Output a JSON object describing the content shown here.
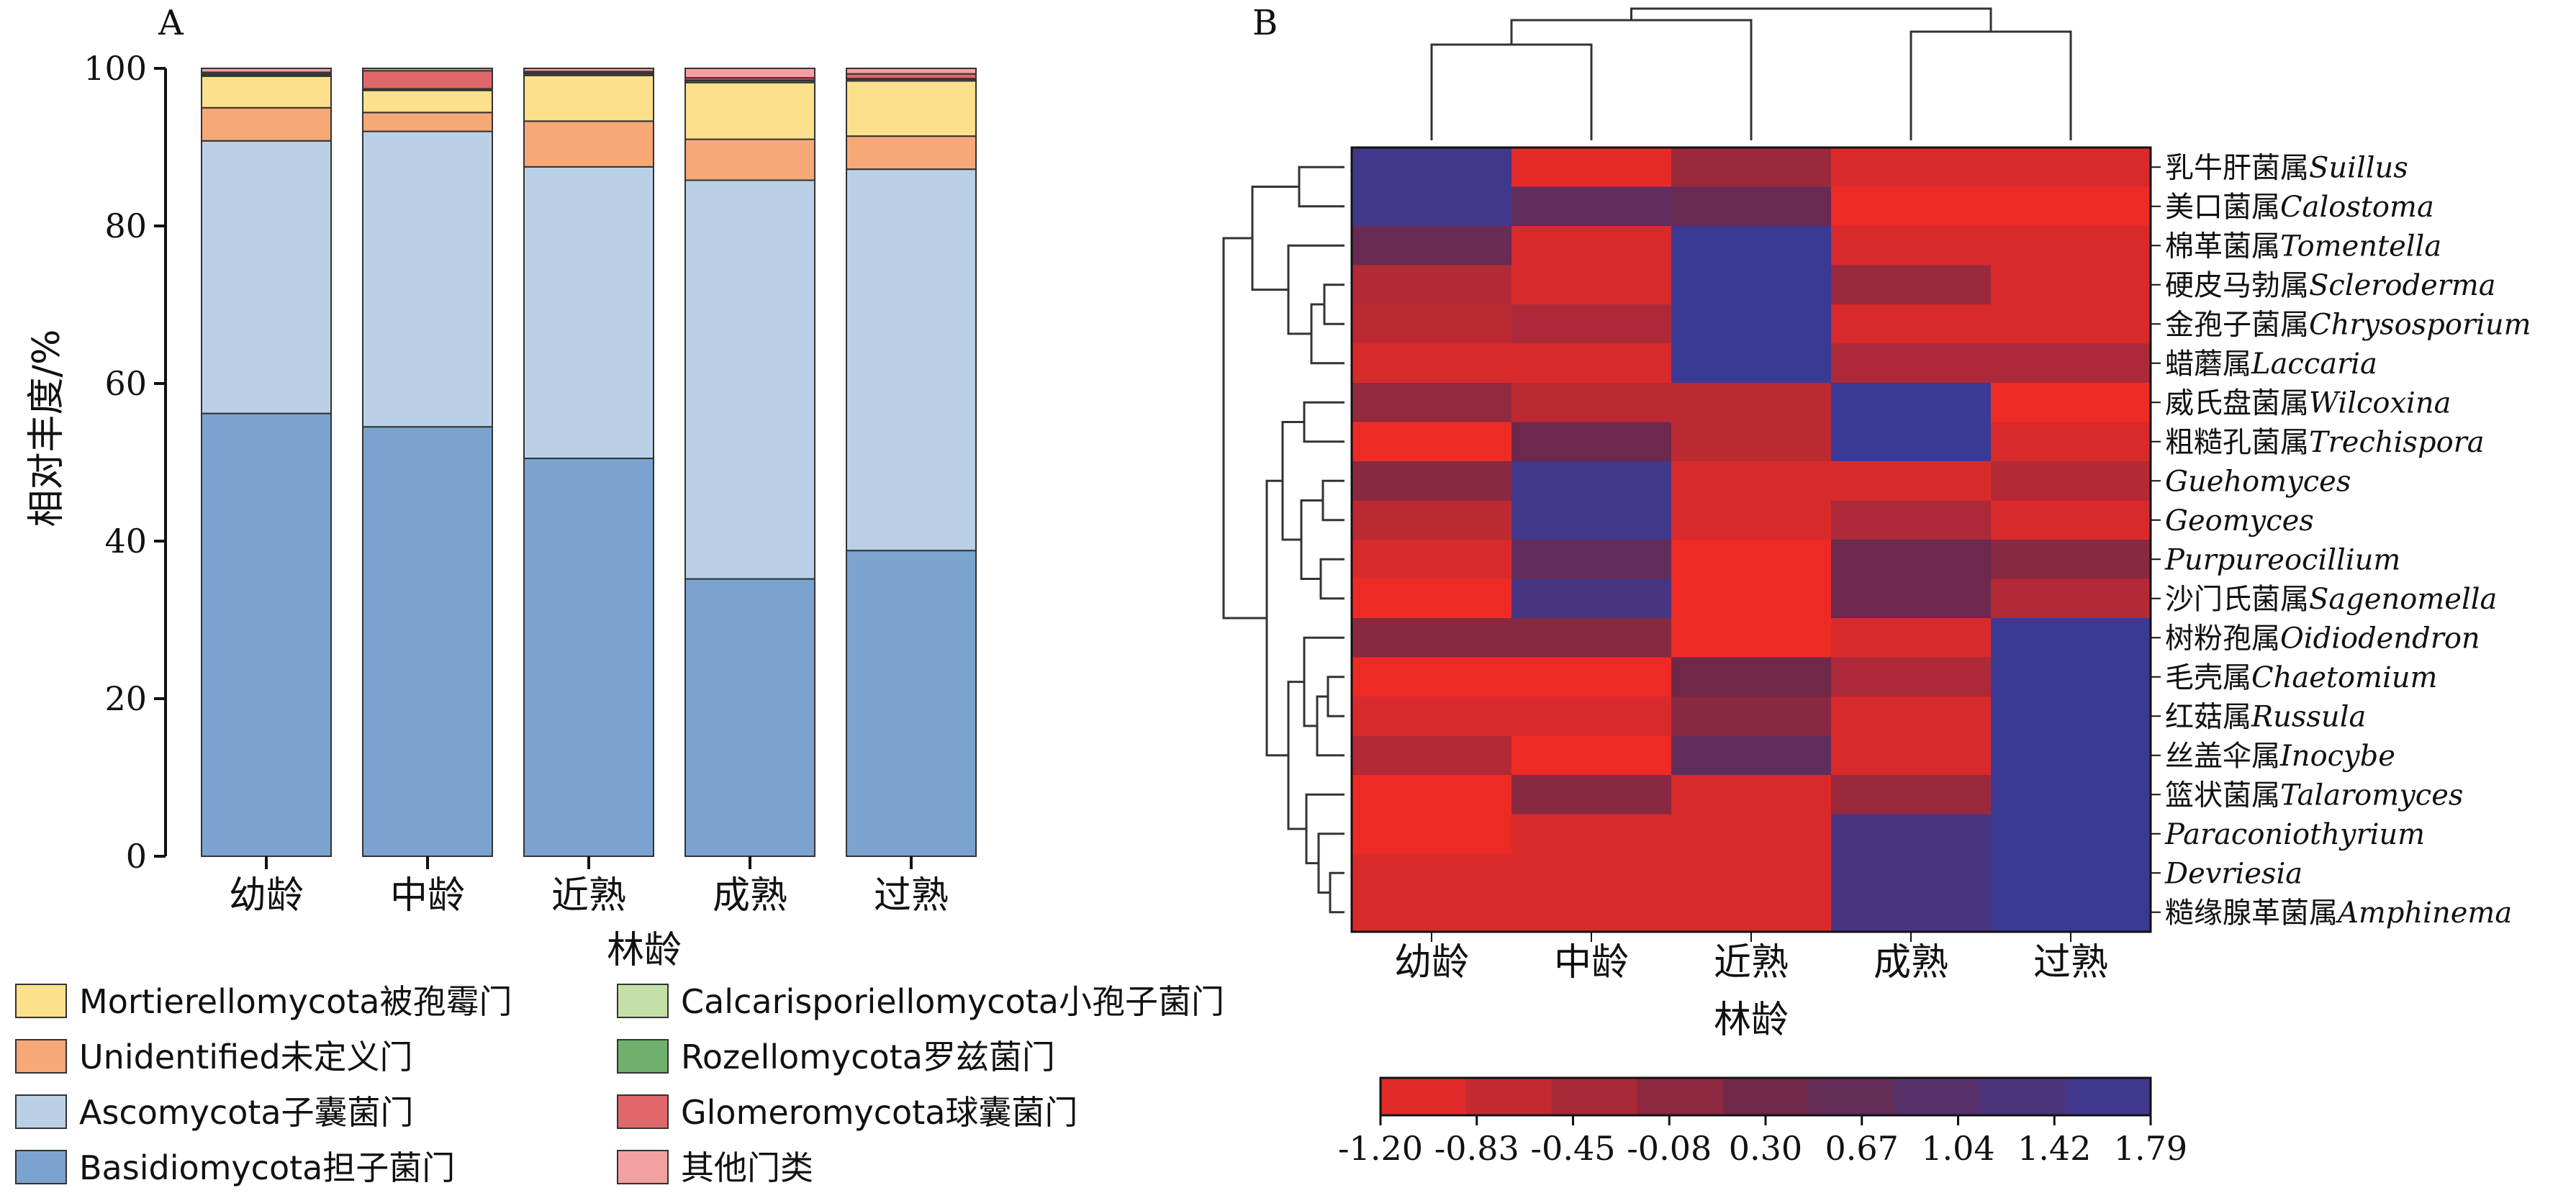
{
  "chart_data": [
    {
      "type": "bar",
      "stacked": true,
      "panel_label": "A",
      "categories": [
        "幼龄",
        "中龄",
        "近熟",
        "成熟",
        "过熟"
      ],
      "xlabel": "林龄",
      "ylabel": "相对丰度/%",
      "ylim": [
        0,
        100
      ],
      "yticks": [
        "0",
        "20",
        "40",
        "60",
        "80",
        "100"
      ],
      "series": [
        {
          "name": "Basidiomycota担子菌门",
          "color": "#7ba3cf",
          "values": [
            56.2,
            54.5,
            50.5,
            35.2,
            38.8
          ]
        },
        {
          "name": "Ascomycota子囊菌门",
          "color": "#b9d0e7",
          "values": [
            34.6,
            37.5,
            37.0,
            50.6,
            48.4
          ]
        },
        {
          "name": "Unidentified未定义门",
          "color": "#f6a877",
          "values": [
            4.2,
            2.4,
            5.8,
            5.2,
            4.2
          ]
        },
        {
          "name": "Mortierellomycota被孢霉门",
          "color": "#fde08c",
          "values": [
            4.0,
            2.8,
            5.8,
            7.2,
            7.0
          ]
        },
        {
          "name": "Calcarisporiellomycota小孢子菌门",
          "color": "#c4e0a6",
          "values": [
            0.2,
            0.1,
            0.2,
            0.2,
            0.2
          ]
        },
        {
          "name": "Rozellomycota罗兹菌门",
          "color": "#6fb16c",
          "values": [
            0.1,
            0.1,
            0.1,
            0.1,
            0.1
          ]
        },
        {
          "name": "Glomeromycota球囊菌门",
          "color": "#e0676a",
          "values": [
            0.2,
            2.3,
            0.2,
            0.3,
            0.6
          ]
        },
        {
          "name": "其他门类",
          "color": "#f3a0a0",
          "values": [
            0.5,
            0.3,
            0.4,
            1.2,
            0.7
          ]
        }
      ],
      "legend_order": [
        "Mortierellomycota被孢霉门",
        "Calcarisporiellomycota小孢子菌门",
        "Unidentified未定义门",
        "Rozellomycota罗兹菌门",
        "Ascomycota子囊菌门",
        "Glomeromycota球囊菌门",
        "Basidiomycota担子菌门",
        "其他门类"
      ],
      "legend_placement": "bottom"
    },
    {
      "type": "heatmap",
      "panel_label": "B",
      "columns": [
        "幼龄",
        "中龄",
        "近熟",
        "成熟",
        "过熟"
      ],
      "xlabel": "林龄",
      "rows": [
        {
          "prefix": "乳牛肝菌属",
          "latin": "Suillus",
          "values": [
            1.6,
            -1.1,
            -0.2,
            -0.95,
            -0.95
          ]
        },
        {
          "prefix": "美口菌属",
          "latin": "Calostoma",
          "values": [
            1.6,
            0.7,
            0.5,
            -1.2,
            -1.2
          ]
        },
        {
          "prefix": "棉革菌属",
          "latin": "Tomentella",
          "values": [
            0.5,
            -0.95,
            1.79,
            -0.95,
            -0.95
          ]
        },
        {
          "prefix": "硬皮马勃属",
          "latin": "Scleroderma",
          "values": [
            -0.5,
            -0.95,
            1.79,
            -0.2,
            -0.95
          ]
        },
        {
          "prefix": "金孢子菌属",
          "latin": "Chrysosporium",
          "values": [
            -0.6,
            -0.4,
            1.79,
            -0.95,
            -0.95
          ]
        },
        {
          "prefix": "蜡蘑属",
          "latin": "Laccaria",
          "values": [
            -0.95,
            -0.95,
            1.79,
            -0.4,
            -0.4
          ]
        },
        {
          "prefix": "威氏盘菌属",
          "latin": "Wilcoxina",
          "values": [
            -0.1,
            -0.6,
            -0.6,
            1.79,
            -1.2
          ]
        },
        {
          "prefix": "粗糙孔菌属",
          "latin": "Trechispora",
          "values": [
            -1.2,
            0.4,
            -0.6,
            1.79,
            -0.95
          ]
        },
        {
          "prefix": "",
          "latin": "Guehomyces",
          "values": [
            0.0,
            1.6,
            -0.95,
            -0.95,
            -0.5
          ]
        },
        {
          "prefix": "",
          "latin": "Geomyces",
          "values": [
            -0.6,
            1.6,
            -0.95,
            -0.4,
            -0.95
          ]
        },
        {
          "prefix": "",
          "latin": "Purpureocillium",
          "values": [
            -0.95,
            0.7,
            -1.2,
            0.4,
            0.0
          ]
        },
        {
          "prefix": "沙门氏菌属",
          "latin": "Sagenomella",
          "values": [
            -1.2,
            1.4,
            -1.2,
            0.4,
            -0.5
          ]
        },
        {
          "prefix": "树粉孢属",
          "latin": "Oidiodendron",
          "values": [
            0.0,
            0.0,
            -1.2,
            -0.95,
            1.79
          ]
        },
        {
          "prefix": "毛壳属",
          "latin": "Chaetomium",
          "values": [
            -1.2,
            -1.2,
            0.3,
            -0.4,
            1.79
          ]
        },
        {
          "prefix": "红菇属",
          "latin": "Russula",
          "values": [
            -0.95,
            -0.95,
            0.0,
            -0.95,
            1.79
          ]
        },
        {
          "prefix": "丝盖伞属",
          "latin": "Inocybe",
          "values": [
            -0.5,
            -1.2,
            0.7,
            -0.95,
            1.79
          ]
        },
        {
          "prefix": "篮状菌属",
          "latin": "Talaromyces",
          "values": [
            -1.2,
            0.0,
            -0.95,
            -0.2,
            1.79
          ]
        },
        {
          "prefix": "",
          "latin": "Paraconiothyrium",
          "values": [
            -1.2,
            -0.95,
            -0.95,
            1.4,
            1.79
          ]
        },
        {
          "prefix": "",
          "latin": "Devriesia",
          "values": [
            -0.95,
            -0.95,
            -0.95,
            1.4,
            1.79
          ]
        },
        {
          "prefix": "糙缘腺革菌属",
          "latin": "Amphinema",
          "values": [
            -0.95,
            -0.95,
            -0.95,
            1.4,
            1.79
          ]
        }
      ],
      "color_scale": {
        "min": -1.2,
        "max": 1.79,
        "low_color": "#ee2a25",
        "high_color": "#3a3a95",
        "tick_labels": [
          "-1.20",
          "-0.83",
          "-0.45",
          "-0.08",
          "0.30",
          "0.67",
          "1.04",
          "1.42",
          "1.79"
        ]
      }
    }
  ]
}
